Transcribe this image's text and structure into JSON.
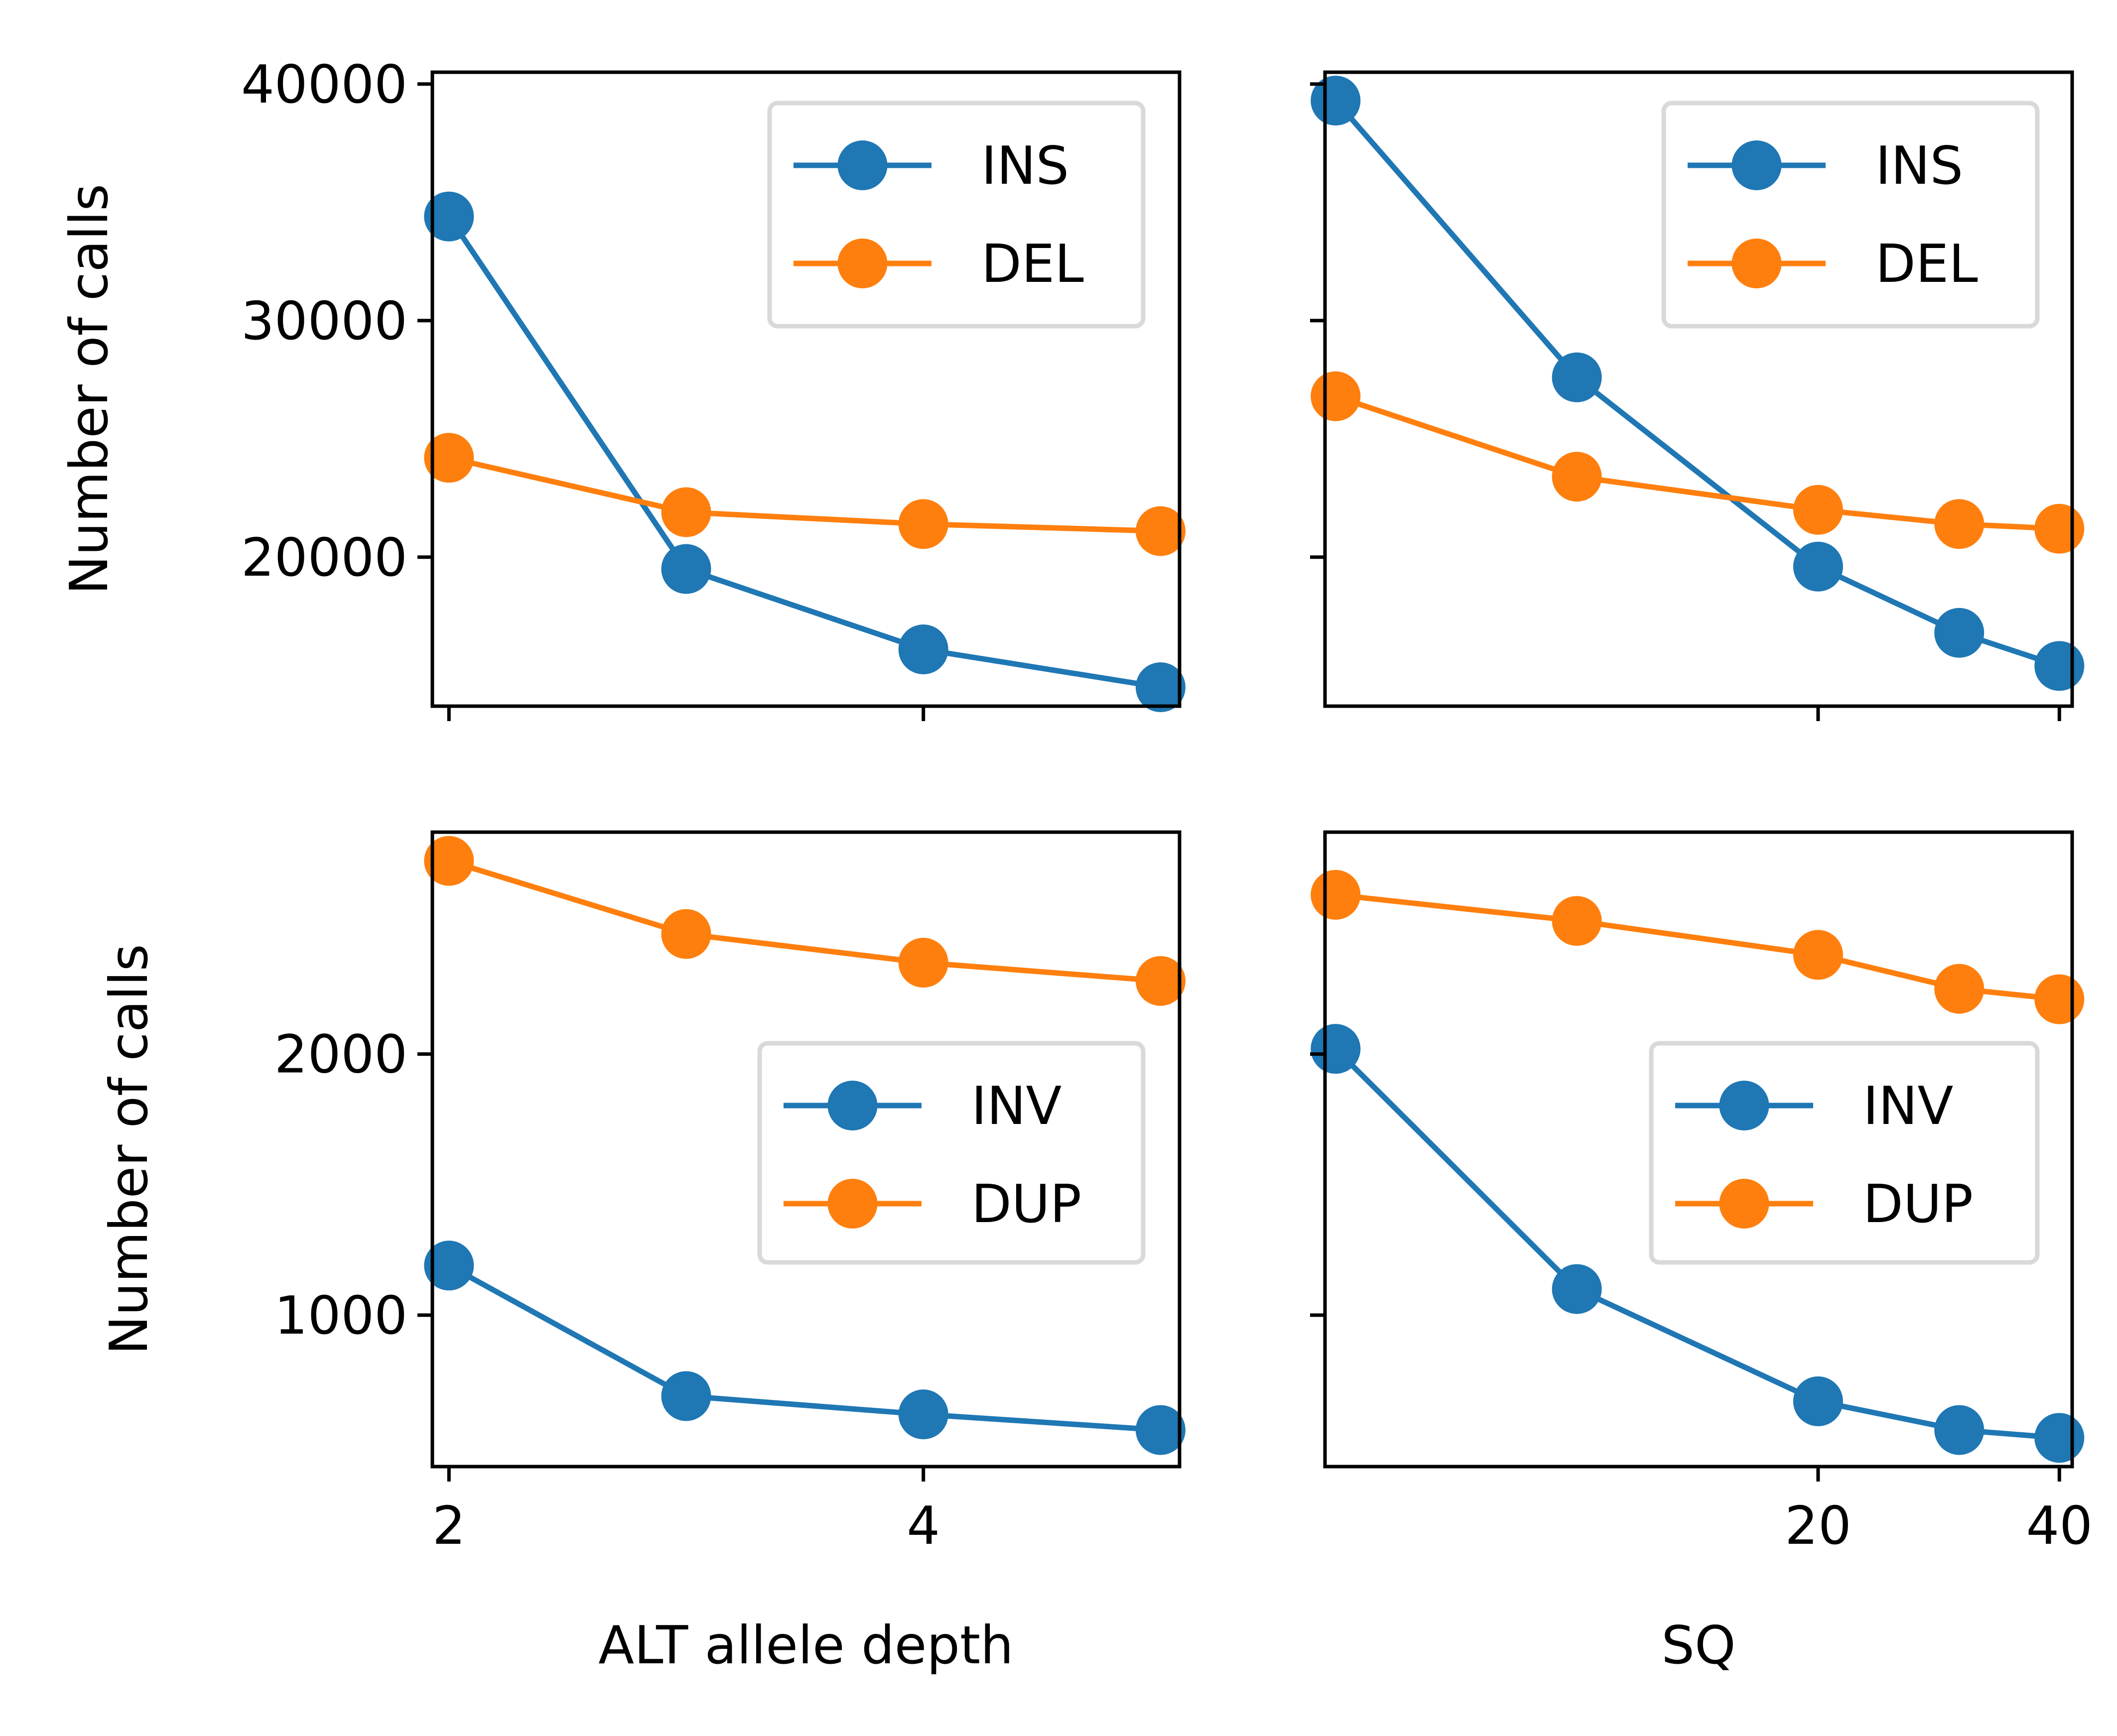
{
  "colors": {
    "series1": "#1f77b4",
    "series2": "#ff7f0e",
    "axis": "#000000",
    "legend_border": "#d9d9d9"
  },
  "chart_data": [
    {
      "type": "line",
      "panel": "top-left",
      "x": [
        2,
        3,
        4,
        5
      ],
      "x_scale": "linear",
      "xlim": [
        1.93,
        5.08
      ],
      "xticks": [
        2,
        4
      ],
      "xticklabels_visible": false,
      "ylim": [
        13700,
        40500
      ],
      "yticks": [
        20000,
        30000,
        40000
      ],
      "yticklabels": [
        "20000",
        "30000",
        "40000"
      ],
      "ylabel": "Number of calls",
      "xlabel": "",
      "legend": "top-right",
      "grid": false,
      "series": [
        {
          "name": "INS",
          "color": "#1f77b4",
          "values": [
            34400,
            19500,
            16100,
            14500
          ]
        },
        {
          "name": "DEL",
          "color": "#ff7f0e",
          "values": [
            24200,
            21900,
            21400,
            21100
          ]
        }
      ]
    },
    {
      "type": "line",
      "panel": "top-right",
      "x": [
        5,
        10,
        20,
        30,
        40
      ],
      "x_scale": "log",
      "xlim": [
        4.85,
        41.5
      ],
      "xticks": [
        20,
        40
      ],
      "xticklabels_visible": false,
      "ylim": [
        13700,
        40500
      ],
      "yticks": [
        20000,
        30000,
        40000
      ],
      "yticklabels_visible": false,
      "ylabel": "",
      "xlabel": "",
      "legend": "top-right",
      "grid": false,
      "series": [
        {
          "name": "INS",
          "color": "#1f77b4",
          "values": [
            39300,
            27600,
            19600,
            16800,
            15400
          ]
        },
        {
          "name": "DEL",
          "color": "#ff7f0e",
          "values": [
            26800,
            23400,
            22000,
            21400,
            21200
          ]
        }
      ]
    },
    {
      "type": "line",
      "panel": "bottom-left",
      "x": [
        2,
        3,
        4,
        5
      ],
      "x_scale": "linear",
      "xlim": [
        1.93,
        5.08
      ],
      "xticks": [
        2,
        4
      ],
      "xticklabels": [
        "2",
        "4"
      ],
      "ylim": [
        420,
        2850
      ],
      "yticks": [
        1000,
        2000
      ],
      "yticklabels": [
        "1000",
        "2000"
      ],
      "ylabel": "Number of calls",
      "xlabel": "ALT allele depth",
      "legend": "center-right",
      "grid": false,
      "series": [
        {
          "name": "INV",
          "color": "#1f77b4",
          "values": [
            1190,
            690,
            620,
            560
          ]
        },
        {
          "name": "DUP",
          "color": "#ff7f0e",
          "values": [
            2740,
            2460,
            2350,
            2280
          ]
        }
      ]
    },
    {
      "type": "line",
      "panel": "bottom-right",
      "x": [
        5,
        10,
        20,
        30,
        40
      ],
      "x_scale": "log",
      "xlim": [
        4.85,
        41.5
      ],
      "xticks": [
        20,
        40
      ],
      "xticklabels": [
        "20",
        "40"
      ],
      "ylim": [
        420,
        2850
      ],
      "yticks": [
        1000,
        2000
      ],
      "yticklabels_visible": false,
      "ylabel": "",
      "xlabel": "SQ",
      "legend": "center-right",
      "grid": false,
      "series": [
        {
          "name": "INV",
          "color": "#1f77b4",
          "values": [
            2020,
            1100,
            670,
            560,
            530
          ]
        },
        {
          "name": "DUP",
          "color": "#ff7f0e",
          "values": [
            2610,
            2510,
            2380,
            2250,
            2210
          ]
        }
      ]
    }
  ]
}
